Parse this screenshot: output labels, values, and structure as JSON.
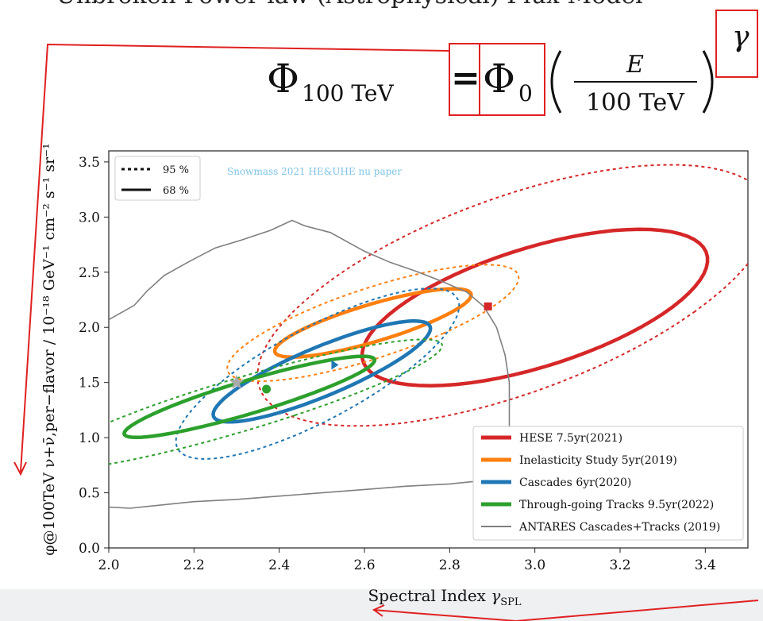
{
  "header": {
    "cut_title": "Unbroken Power-law (Astrophysical) Flux Model",
    "formula": {
      "lhs_symbol": "Φ",
      "lhs_sub": "100 TeV",
      "equals": "=",
      "rhs_symbol": "Φ",
      "rhs_sub": "0",
      "frac_num": "E",
      "frac_den": "100 TeV",
      "exponent": "γ"
    }
  },
  "colors": {
    "hese": "#d62728",
    "inelasticity": "#ff7f0e",
    "cascades": "#1f77b4",
    "tracks": "#2ca02c",
    "antares": "#7f7f7f",
    "annotation": "#e02020",
    "watermark": "#7ec4e6"
  },
  "chart_data": {
    "type": "line",
    "title": "",
    "xlabel_main": "Spectral Index ",
    "xlabel_sym": "γ",
    "xlabel_sub": "SPL",
    "ylabel": "φ@100TeV ν+ν̄,per−flavor / 10⁻¹⁸ GeV⁻¹ cm⁻² s⁻¹ sr⁻¹",
    "xlim": [
      2.0,
      3.5
    ],
    "ylim": [
      0.0,
      3.6
    ],
    "xticks": [
      2.0,
      2.2,
      2.4,
      2.6,
      2.8,
      3.0,
      3.2,
      3.4
    ],
    "yticks": [
      0.0,
      0.5,
      1.0,
      1.5,
      2.0,
      2.5,
      3.0,
      3.5
    ],
    "grid": false,
    "watermark": "Snowmass 2021 HE&UHE nu paper",
    "contour_legend": [
      {
        "label": "95 %",
        "style": "dotted"
      },
      {
        "label": "68 %",
        "style": "solid"
      }
    ],
    "legend_position": "lower-right",
    "series": [
      {
        "name": "HESE 7.5yr(2021)",
        "color": "hese",
        "marker": "square",
        "best_fit": [
          2.89,
          2.19
        ],
        "contour68": {
          "center": [
            3.0,
            2.18
          ],
          "rx": 0.3,
          "ry": 0.76,
          "angle_deg": -23
        },
        "contour95": {
          "center": [
            2.95,
            2.29
          ],
          "rx": 0.45,
          "ry": 1.25,
          "angle_deg": -20
        }
      },
      {
        "name": "Inelasticity Study 5yr(2019)",
        "color": "inelasticity",
        "marker": "none",
        "best_fit": [
          2.62,
          2.04
        ],
        "contour68": {
          "center": [
            2.62,
            2.04
          ],
          "rx": 0.11,
          "ry": 0.37,
          "angle_deg": -35
        },
        "contour95": {
          "center": [
            2.62,
            2.04
          ],
          "rx": 0.19,
          "ry": 0.6,
          "angle_deg": -30
        }
      },
      {
        "name": "Cascades 6yr(2020)",
        "color": "cascades",
        "marker": "triangle",
        "best_fit": [
          2.53,
          1.66
        ],
        "contour68": {
          "center": [
            2.5,
            1.6
          ],
          "rx": 0.12,
          "ry": 0.51,
          "angle_deg": -27
        },
        "contour95": {
          "center": [
            2.49,
            1.58
          ],
          "rx": 0.19,
          "ry": 0.82,
          "angle_deg": -20
        }
      },
      {
        "name": "Through-going Tracks 9.5yr(2022)",
        "color": "tracks",
        "marker": "circle",
        "best_fit": [
          2.37,
          1.44
        ],
        "contour68": {
          "center": [
            2.33,
            1.37
          ],
          "rx": 0.1,
          "ry": 0.46,
          "angle_deg": -38
        },
        "contour95": {
          "center": [
            2.31,
            1.3
          ],
          "rx": 0.16,
          "ry": 0.74,
          "angle_deg": -38
        }
      },
      {
        "name": "ANTARES Cascades+Tracks (2019)",
        "color": "antares",
        "marker": "star",
        "best_fit": [
          2.3,
          1.5
        ],
        "contour": {
          "x": [
            2.0,
            2.06,
            2.09,
            2.13,
            2.19,
            2.25,
            2.31,
            2.38,
            2.43,
            2.46,
            2.52,
            2.6,
            2.66,
            2.72,
            2.78,
            2.84,
            2.88,
            2.91,
            2.93,
            2.94,
            2.94,
            2.94,
            2.93,
            2.9,
            2.85,
            2.8,
            2.7,
            2.6,
            2.5,
            2.4,
            2.3,
            2.2,
            2.1,
            2.05,
            2.0
          ],
          "y": [
            2.07,
            2.2,
            2.33,
            2.47,
            2.6,
            2.72,
            2.79,
            2.88,
            2.97,
            2.92,
            2.86,
            2.69,
            2.59,
            2.51,
            2.42,
            2.32,
            2.19,
            2.0,
            1.75,
            1.5,
            1.2,
            0.9,
            0.65,
            0.61,
            0.6,
            0.58,
            0.56,
            0.53,
            0.5,
            0.47,
            0.44,
            0.42,
            0.38,
            0.36,
            0.37
          ]
        }
      }
    ]
  }
}
